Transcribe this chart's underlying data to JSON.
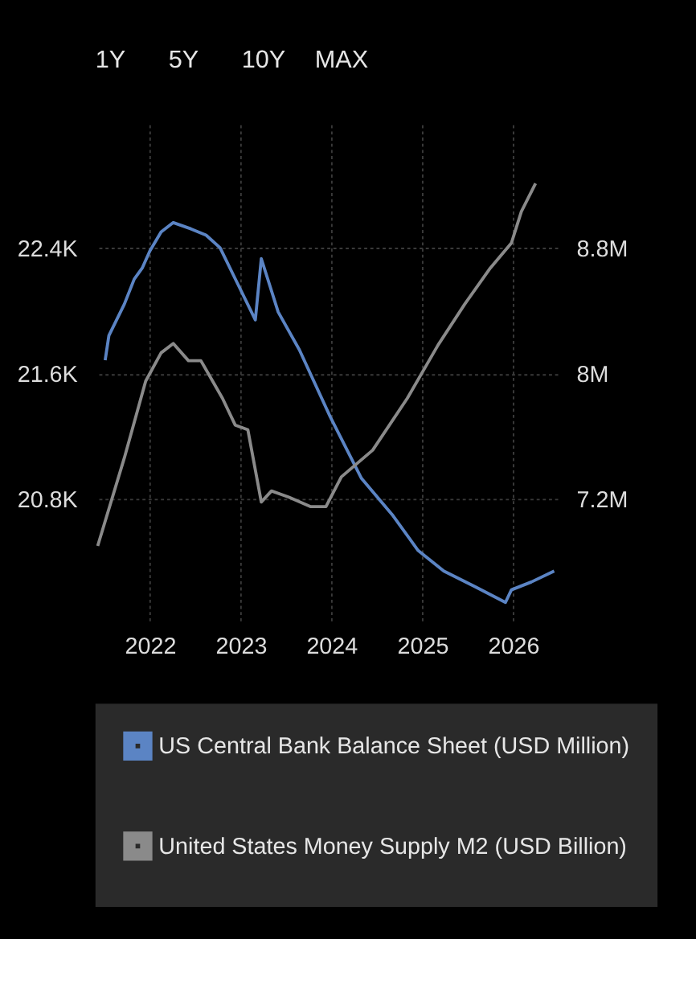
{
  "chart_data": {
    "type": "line",
    "annotations": [
      "1Y",
      "5Y",
      "10Y",
      "MAX"
    ],
    "xlim": [
      "2021-05-27",
      "2026-06-28"
    ],
    "xticks": [
      "2022",
      "2023",
      "2024",
      "2025",
      "2026"
    ],
    "ylim": [
      20015,
      23185
    ],
    "yticks": [
      {
        "value": 20800,
        "label": "20.8K"
      },
      {
        "value": 21600,
        "label": "21.6K"
      },
      {
        "value": 22400,
        "label": "22.4K"
      }
    ],
    "y2lim": [
      6415000,
      9585000
    ],
    "y2ticks": [
      {
        "value": 7200000,
        "label": "7.2M"
      },
      {
        "value": 8000000,
        "label": "8M"
      },
      {
        "value": 8800000,
        "label": "8.8M"
      }
    ],
    "grid": true,
    "legend": "bottom",
    "line_style": "solid",
    "marker": "none",
    "series": [
      {
        "name": "US Central Bank Balance Sheet (USD Million)",
        "color": "#5b84c4",
        "axis": "y2",
        "x": [
          "2021-07-05",
          "2021-07-20",
          "2021-08-20",
          "2021-09-20",
          "2021-10-30",
          "2021-12-01",
          "2022-01-01",
          "2022-02-15",
          "2022-04-05",
          "2022-06-15",
          "2022-08-15",
          "2022-10-10",
          "2022-12-20",
          "2023-03-01",
          "2023-03-25",
          "2023-06-01",
          "2023-08-25",
          "2023-12-28",
          "2024-05-01",
          "2024-09-01",
          "2024-12-15",
          "2025-03-28",
          "2025-08-01",
          "2025-12-01",
          "2025-12-25",
          "2026-03-15",
          "2026-06-15"
        ],
        "values": [
          8083000,
          8240000,
          8340000,
          8440000,
          8600000,
          8670000,
          8780000,
          8900000,
          8960000,
          8920000,
          8880000,
          8800000,
          8570000,
          8340000,
          8730000,
          8390000,
          8150000,
          7720000,
          7330000,
          7100000,
          6870000,
          6740000,
          6640000,
          6540000,
          6620000,
          6670000,
          6740000
        ]
      },
      {
        "name": "United States Money Supply M2 (USD Billion)",
        "color": "#8a8a8a",
        "axis": "y",
        "x": [
          "2021-06-05",
          "2021-09-20",
          "2021-12-15",
          "2022-02-15",
          "2022-04-05",
          "2022-06-05",
          "2022-07-25",
          "2022-10-20",
          "2022-12-10",
          "2023-01-30",
          "2023-03-25",
          "2023-05-05",
          "2023-07-15",
          "2023-10-10",
          "2023-12-10",
          "2024-02-10",
          "2024-06-15",
          "2024-11-01",
          "2025-03-05",
          "2025-06-20",
          "2025-10-01",
          "2025-12-25",
          "2026-02-03",
          "2026-04-01"
        ],
        "values": [
          20500,
          21060,
          21550,
          21730,
          21790,
          21680,
          21680,
          21440,
          21270,
          21240,
          20780,
          20850,
          20810,
          20750,
          20750,
          20940,
          21110,
          21440,
          21780,
          22040,
          22270,
          22430,
          22630,
          22810
        ]
      }
    ]
  }
}
